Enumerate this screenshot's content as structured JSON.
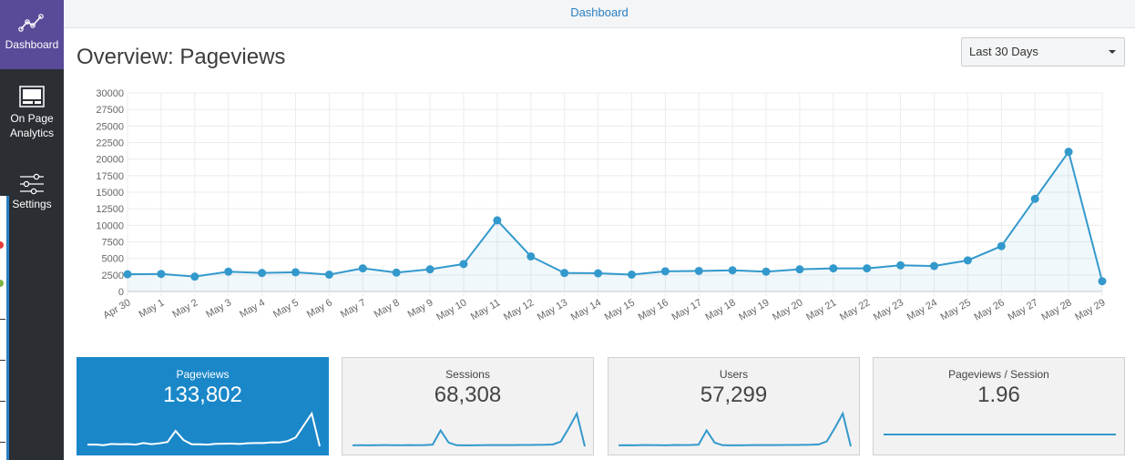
{
  "topbar": {
    "title": "Dashboard"
  },
  "sidebar": {
    "items": [
      {
        "label": "Dashboard",
        "icon": "line-chart-icon",
        "active": true
      },
      {
        "label": "On Page Analytics",
        "icon": "page-analytics-icon",
        "active": false
      },
      {
        "label": "Settings",
        "icon": "sliders-icon",
        "active": false
      }
    ]
  },
  "header": {
    "title": "Overview: Pageviews"
  },
  "date_range": {
    "selected": "Last 30 Days"
  },
  "colors": {
    "accent": "#1a87c9",
    "sidebar_active": "#5a4a98",
    "sidebar_bg": "#2b2e33",
    "line": "#3399cc"
  },
  "chart_data": {
    "type": "area",
    "title": "",
    "xlabel": "",
    "ylabel": "",
    "ylim": [
      0,
      30000
    ],
    "yticks": [
      0,
      2500,
      5000,
      7500,
      10000,
      12500,
      15000,
      17500,
      20000,
      22500,
      25000,
      27500,
      30000
    ],
    "grid": true,
    "categories": [
      "Apr 30",
      "May 1",
      "May 2",
      "May 3",
      "May 4",
      "May 5",
      "May 6",
      "May 7",
      "May 8",
      "May 9",
      "May 10",
      "May 11",
      "May 12",
      "May 13",
      "May 14",
      "May 15",
      "May 16",
      "May 17",
      "May 18",
      "May 19",
      "May 20",
      "May 21",
      "May 22",
      "May 23",
      "May 24",
      "May 25",
      "May 26",
      "May 27",
      "May 28",
      "May 29"
    ],
    "series": [
      {
        "values": [
          2600,
          2650,
          2250,
          3000,
          2800,
          2900,
          2550,
          3500,
          2850,
          3350,
          4150,
          10750,
          5300,
          2800,
          2750,
          2550,
          3050,
          3100,
          3200,
          3000,
          3350,
          3500,
          3500,
          3950,
          3850,
          4700,
          6850,
          14000,
          21100,
          1550
        ]
      }
    ]
  },
  "stats": [
    {
      "title": "Pageviews",
      "value": "133,802",
      "active": true,
      "spark": [
        2600,
        2650,
        2250,
        3000,
        2800,
        2900,
        2550,
        3500,
        2850,
        3350,
        4150,
        10750,
        5300,
        2800,
        2750,
        2550,
        3050,
        3100,
        3200,
        3000,
        3350,
        3500,
        3500,
        3950,
        3850,
        4700,
        6850,
        14000,
        21100,
        1550
      ]
    },
    {
      "title": "Sessions",
      "value": "68,308",
      "active": false,
      "spark": [
        1400,
        1420,
        1400,
        1450,
        1460,
        1430,
        1420,
        1480,
        1450,
        1460,
        1600,
        5800,
        2200,
        1420,
        1400,
        1410,
        1450,
        1460,
        1480,
        1460,
        1470,
        1500,
        1500,
        1550,
        1560,
        1650,
        2500,
        6500,
        10800,
        1100
      ]
    },
    {
      "title": "Users",
      "value": "57,299",
      "active": false,
      "spark": [
        1200,
        1230,
        1200,
        1260,
        1260,
        1240,
        1220,
        1300,
        1270,
        1290,
        1380,
        5000,
        1900,
        1230,
        1210,
        1210,
        1250,
        1260,
        1280,
        1260,
        1270,
        1290,
        1300,
        1340,
        1350,
        1430,
        2200,
        5600,
        9300,
        950
      ]
    },
    {
      "title": "Pageviews / Session",
      "value": "1.96",
      "active": false,
      "spark": [
        1.96,
        1.96,
        1.96,
        1.96,
        1.96,
        1.96,
        1.96,
        1.96,
        1.96,
        1.96,
        1.96,
        1.96,
        1.96,
        1.96,
        1.96,
        1.96,
        1.96,
        1.96,
        1.96,
        1.96,
        1.96,
        1.96,
        1.96,
        1.96,
        1.96,
        1.96,
        1.96,
        1.96,
        1.96,
        1.96
      ]
    }
  ]
}
